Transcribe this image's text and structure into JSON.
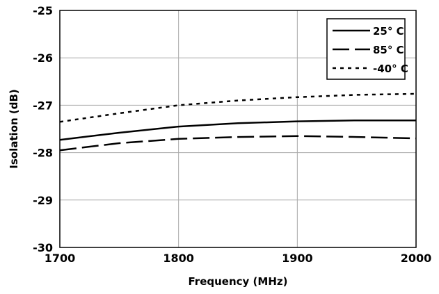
{
  "chart_data": {
    "type": "line",
    "xlabel": "Frequency (MHz)",
    "ylabel": "Isolation (dB)",
    "xlim": [
      1700,
      2000
    ],
    "ylim": [
      -30,
      -25
    ],
    "xticks": [
      1700,
      1800,
      1900,
      2000
    ],
    "yticks": [
      -30,
      -29,
      -28,
      -27,
      -26,
      -25
    ],
    "xtick_labels": [
      "1700",
      "1800",
      "1900",
      "2000"
    ],
    "ytick_labels": [
      "-30",
      "-29",
      "-28",
      "-27",
      "-26",
      "-25"
    ],
    "grid": true,
    "legend_position": "top-right",
    "series": [
      {
        "name": "25° C",
        "style": "solid",
        "x": [
          1700,
          1750,
          1800,
          1850,
          1900,
          1950,
          2000
        ],
        "y": [
          -27.73,
          -27.58,
          -27.45,
          -27.38,
          -27.34,
          -27.32,
          -27.32
        ]
      },
      {
        "name": "85° C",
        "style": "dashed",
        "x": [
          1700,
          1750,
          1800,
          1850,
          1900,
          1950,
          2000
        ],
        "y": [
          -27.95,
          -27.8,
          -27.71,
          -27.67,
          -27.65,
          -27.67,
          -27.7
        ]
      },
      {
        "name": "-40° C",
        "style": "dotted",
        "x": [
          1700,
          1750,
          1800,
          1850,
          1900,
          1950,
          2000
        ],
        "y": [
          -27.35,
          -27.17,
          -27.0,
          -26.9,
          -26.83,
          -26.78,
          -26.76
        ]
      }
    ]
  }
}
